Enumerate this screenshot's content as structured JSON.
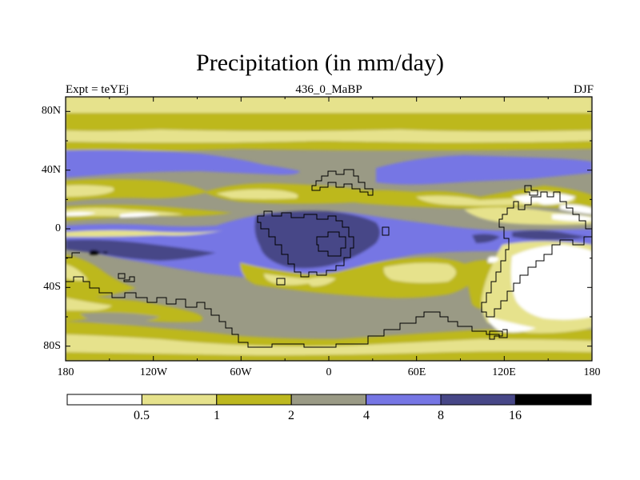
{
  "title": "Precipitation (in mm/day)",
  "subtitle_left": "Expt = teYEj",
  "subtitle_center": "436_0_MaBP",
  "subtitle_right": "DJF",
  "lat_labels": [
    "80N",
    "40N",
    "0",
    "40S",
    "80S"
  ],
  "lon_labels": [
    "180",
    "120W",
    "60W",
    "0",
    "60E",
    "120E",
    "180"
  ],
  "colorbar": {
    "levels": [
      "0.5",
      "1",
      "2",
      "4",
      "8",
      "16"
    ],
    "colors": [
      "#ffffff",
      "#e6e28c",
      "#bdb81f",
      "#9a9a85",
      "#7676e4",
      "#474787",
      "#000000"
    ]
  },
  "colors": {
    "white": "#ffffff",
    "light_yellow": "#e6e28c",
    "olive": "#bdb81f",
    "gray": "#9a9a85",
    "blue": "#7676e4",
    "dark_blue": "#474787",
    "black": "#000000"
  }
}
